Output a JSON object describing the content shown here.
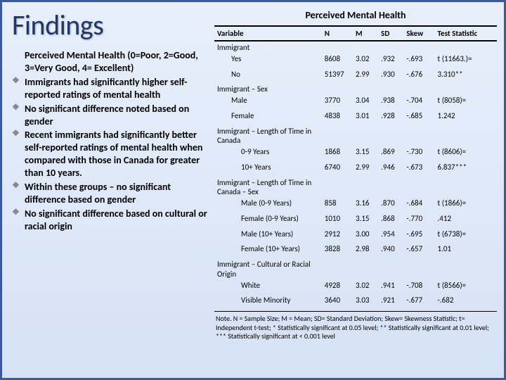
{
  "title": "Findings",
  "bullets": [
    "Perceived Mental Health (0=Poor, 2=Good, 3=Very Good, 4= Excellent)",
    "Immigrants had significantly higher self-reported ratings of mental health",
    "No significant difference noted based on gender",
    "Recent immigrants had significantly better self-reported ratings of mental health when compared with those in Canada for greater than 10 years.",
    "Within these groups – no significant difference based on gender",
    "No significant difference based on cultural or racial origin"
  ],
  "table": {
    "title": "Perceived Mental Health",
    "columns": [
      "Variable",
      "N",
      "M",
      "SD",
      "Skew",
      "Test Statistic"
    ],
    "rows": [
      {
        "label": "Immigrant",
        "indent": 0,
        "section": true
      },
      {
        "label": "Yes",
        "indent": 1,
        "n": "8608",
        "m": "3.02",
        "sd": ".932",
        "skew": "-.693",
        "stat": "t (11663.)="
      },
      {
        "label": "No",
        "indent": 1,
        "n": "51397",
        "m": "2.99",
        "sd": ".930",
        "skew": "-.676",
        "stat": "3.310**"
      },
      {
        "label": "Immigrant – Sex",
        "indent": 0,
        "section": true
      },
      {
        "label": "Male",
        "indent": 1,
        "n": "3770",
        "m": "3.04",
        "sd": ".938",
        "skew": "-.704",
        "stat": "t (8058)="
      },
      {
        "label": "Female",
        "indent": 1,
        "n": "4838",
        "m": "3.01",
        "sd": ".928",
        "skew": "-.685",
        "stat": "1.242"
      },
      {
        "label": "Immigrant – Length of Time in Canada",
        "indent": 0,
        "section": true
      },
      {
        "label": "0-9 Years",
        "indent": 2,
        "n": "1868",
        "m": "3.15",
        "sd": ".869",
        "skew": "-.730",
        "stat": "t (8606)="
      },
      {
        "label": "10+ Years",
        "indent": 2,
        "n": "6740",
        "m": "2.99",
        "sd": ".946",
        "skew": "-.673",
        "stat": "6.837***"
      },
      {
        "label": "Immigrant – Length of Time in Canada – Sex",
        "indent": 0,
        "section": true
      },
      {
        "label": "Male (0-9 Years)",
        "indent": 2,
        "n": "858",
        "m": "3.16",
        "sd": ".870",
        "skew": "-.684",
        "stat": "t (1866)="
      },
      {
        "label": "Female (0-9 Years)",
        "indent": 2,
        "n": "1010",
        "m": "3.15",
        "sd": ".868",
        "skew": "-.770",
        "stat": ".412"
      },
      {
        "label": "Male (10+ Years)",
        "indent": 2,
        "n": "2912",
        "m": "3.00",
        "sd": ".954",
        "skew": "-.695",
        "stat": "t (6738)="
      },
      {
        "label": "Female (10+ Years)",
        "indent": 2,
        "n": "3828",
        "m": "2.98",
        "sd": ".940",
        "skew": "-.657",
        "stat": "1.01"
      },
      {
        "label": "Immigrant – Cultural or Racial Origin",
        "indent": 0,
        "section": true
      },
      {
        "label": "White",
        "indent": 2,
        "n": "4928",
        "m": "3.02",
        "sd": ".941",
        "skew": "-.708",
        "stat": "t (8566)="
      },
      {
        "label": "Visible Minority",
        "indent": 2,
        "n": "3640",
        "m": "3.03",
        "sd": ".921",
        "skew": "-.677",
        "stat": "-.682"
      }
    ],
    "note": "Note. N = Sample Size; M = Mean; SD= Standard Deviation; Skew= Skewness Statistic; t= Independent t-test; * Statistically significant at 0.05 level; ** Statistically significant at 0.01 level; *** Statistically significant at < 0.001 level"
  }
}
